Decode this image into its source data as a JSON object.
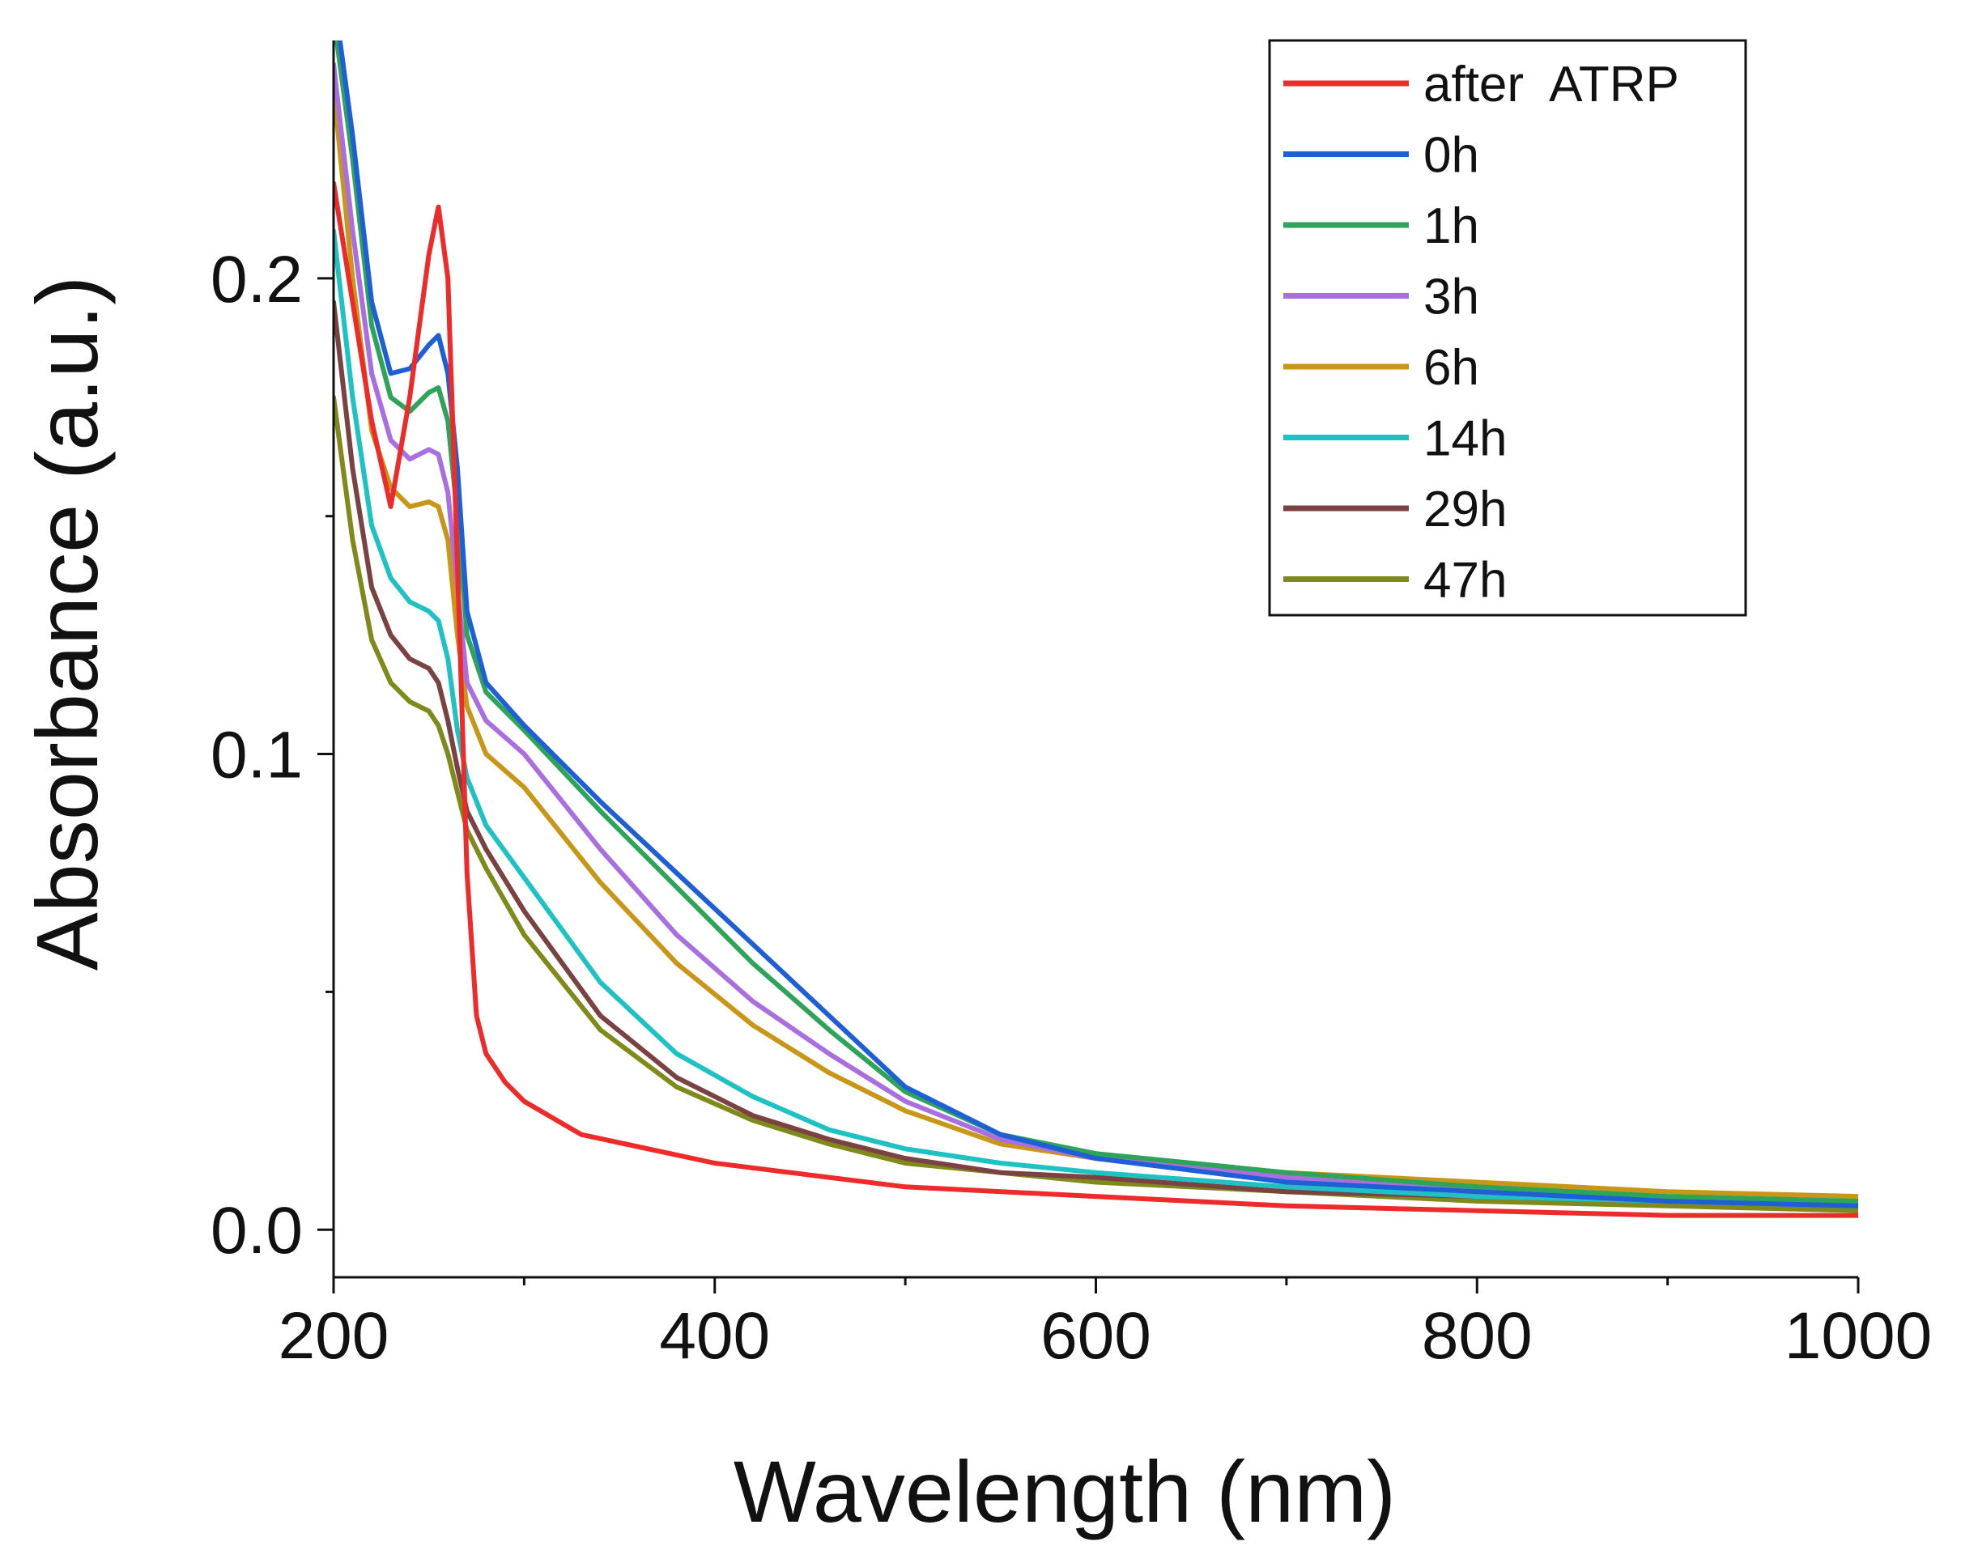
{
  "chart_data": {
    "type": "line",
    "title": "",
    "xlabel": "Wavelength (nm)",
    "ylabel": "Absorbance (a.u.)",
    "xlim": [
      200,
      1000
    ],
    "ylim": [
      -0.01,
      0.25
    ],
    "xticks": [
      200,
      400,
      600,
      800,
      1000
    ],
    "xtick_labels": [
      "200",
      "400",
      "600",
      "800",
      "1000"
    ],
    "yticks": [
      0.0,
      0.1,
      0.2
    ],
    "ytick_labels": [
      "0.0",
      "0.1",
      "0.2"
    ],
    "yminor_ticks": [
      0.05,
      0.15
    ],
    "grid": false,
    "legend_position": "top-right",
    "series": [
      {
        "name": "after  ATRP",
        "color": "#ee2a2a",
        "points": [
          [
            200,
            0.22
          ],
          [
            210,
            0.195
          ],
          [
            220,
            0.17
          ],
          [
            230,
            0.152
          ],
          [
            240,
            0.175
          ],
          [
            250,
            0.205
          ],
          [
            255,
            0.215
          ],
          [
            260,
            0.2
          ],
          [
            265,
            0.14
          ],
          [
            270,
            0.075
          ],
          [
            275,
            0.045
          ],
          [
            280,
            0.037
          ],
          [
            290,
            0.031
          ],
          [
            300,
            0.027
          ],
          [
            330,
            0.02
          ],
          [
            400,
            0.014
          ],
          [
            500,
            0.009
          ],
          [
            600,
            0.007
          ],
          [
            700,
            0.005
          ],
          [
            800,
            0.004
          ],
          [
            900,
            0.003
          ],
          [
            1000,
            0.003
          ]
        ]
      },
      {
        "name": "0h",
        "color": "#1f5fd6",
        "points": [
          [
            200,
            0.26
          ],
          [
            210,
            0.23
          ],
          [
            220,
            0.195
          ],
          [
            230,
            0.18
          ],
          [
            240,
            0.181
          ],
          [
            250,
            0.186
          ],
          [
            255,
            0.188
          ],
          [
            260,
            0.18
          ],
          [
            265,
            0.16
          ],
          [
            270,
            0.13
          ],
          [
            280,
            0.115
          ],
          [
            300,
            0.106
          ],
          [
            340,
            0.09
          ],
          [
            380,
            0.075
          ],
          [
            420,
            0.06
          ],
          [
            460,
            0.045
          ],
          [
            500,
            0.03
          ],
          [
            550,
            0.02
          ],
          [
            600,
            0.015
          ],
          [
            700,
            0.01
          ],
          [
            800,
            0.008
          ],
          [
            900,
            0.006
          ],
          [
            1000,
            0.005
          ]
        ]
      },
      {
        "name": "1h",
        "color": "#2ea35a",
        "points": [
          [
            200,
            0.255
          ],
          [
            210,
            0.225
          ],
          [
            220,
            0.19
          ],
          [
            230,
            0.175
          ],
          [
            240,
            0.172
          ],
          [
            250,
            0.176
          ],
          [
            255,
            0.177
          ],
          [
            260,
            0.17
          ],
          [
            265,
            0.15
          ],
          [
            270,
            0.125
          ],
          [
            280,
            0.113
          ],
          [
            300,
            0.105
          ],
          [
            340,
            0.088
          ],
          [
            380,
            0.072
          ],
          [
            420,
            0.056
          ],
          [
            460,
            0.042
          ],
          [
            500,
            0.029
          ],
          [
            550,
            0.02
          ],
          [
            600,
            0.016
          ],
          [
            700,
            0.012
          ],
          [
            800,
            0.009
          ],
          [
            900,
            0.007
          ],
          [
            1000,
            0.006
          ]
        ]
      },
      {
        "name": "3h",
        "color": "#a96ee0",
        "points": [
          [
            200,
            0.245
          ],
          [
            210,
            0.21
          ],
          [
            220,
            0.18
          ],
          [
            230,
            0.166
          ],
          [
            240,
            0.162
          ],
          [
            250,
            0.164
          ],
          [
            255,
            0.163
          ],
          [
            260,
            0.155
          ],
          [
            265,
            0.135
          ],
          [
            270,
            0.115
          ],
          [
            280,
            0.107
          ],
          [
            300,
            0.1
          ],
          [
            340,
            0.08
          ],
          [
            380,
            0.062
          ],
          [
            420,
            0.048
          ],
          [
            460,
            0.037
          ],
          [
            500,
            0.027
          ],
          [
            550,
            0.019
          ],
          [
            600,
            0.015
          ],
          [
            700,
            0.011
          ],
          [
            800,
            0.008
          ],
          [
            900,
            0.006
          ],
          [
            1000,
            0.005
          ]
        ]
      },
      {
        "name": "6h",
        "color": "#c99718",
        "points": [
          [
            200,
            0.24
          ],
          [
            210,
            0.2
          ],
          [
            220,
            0.168
          ],
          [
            230,
            0.156
          ],
          [
            240,
            0.152
          ],
          [
            250,
            0.153
          ],
          [
            255,
            0.152
          ],
          [
            260,
            0.145
          ],
          [
            265,
            0.125
          ],
          [
            270,
            0.11
          ],
          [
            280,
            0.1
          ],
          [
            300,
            0.093
          ],
          [
            340,
            0.073
          ],
          [
            380,
            0.056
          ],
          [
            420,
            0.043
          ],
          [
            460,
            0.033
          ],
          [
            500,
            0.025
          ],
          [
            550,
            0.018
          ],
          [
            600,
            0.015
          ],
          [
            700,
            0.012
          ],
          [
            800,
            0.01
          ],
          [
            900,
            0.008
          ],
          [
            1000,
            0.007
          ]
        ]
      },
      {
        "name": "14h",
        "color": "#1ec2c2",
        "points": [
          [
            200,
            0.21
          ],
          [
            210,
            0.175
          ],
          [
            220,
            0.148
          ],
          [
            230,
            0.137
          ],
          [
            240,
            0.132
          ],
          [
            250,
            0.13
          ],
          [
            255,
            0.128
          ],
          [
            260,
            0.12
          ],
          [
            265,
            0.105
          ],
          [
            270,
            0.095
          ],
          [
            280,
            0.085
          ],
          [
            300,
            0.074
          ],
          [
            340,
            0.052
          ],
          [
            380,
            0.037
          ],
          [
            420,
            0.028
          ],
          [
            460,
            0.021
          ],
          [
            500,
            0.017
          ],
          [
            550,
            0.014
          ],
          [
            600,
            0.012
          ],
          [
            700,
            0.009
          ],
          [
            800,
            0.007
          ],
          [
            900,
            0.006
          ],
          [
            1000,
            0.005
          ]
        ]
      },
      {
        "name": "29h",
        "color": "#7a4242",
        "points": [
          [
            200,
            0.195
          ],
          [
            210,
            0.16
          ],
          [
            220,
            0.135
          ],
          [
            230,
            0.125
          ],
          [
            240,
            0.12
          ],
          [
            250,
            0.118
          ],
          [
            255,
            0.115
          ],
          [
            260,
            0.107
          ],
          [
            265,
            0.097
          ],
          [
            270,
            0.088
          ],
          [
            280,
            0.08
          ],
          [
            300,
            0.067
          ],
          [
            340,
            0.045
          ],
          [
            380,
            0.032
          ],
          [
            420,
            0.024
          ],
          [
            460,
            0.019
          ],
          [
            500,
            0.015
          ],
          [
            550,
            0.012
          ],
          [
            600,
            0.011
          ],
          [
            700,
            0.008
          ],
          [
            800,
            0.007
          ],
          [
            900,
            0.006
          ],
          [
            1000,
            0.005
          ]
        ]
      },
      {
        "name": "47h",
        "color": "#7f8a1a",
        "points": [
          [
            200,
            0.175
          ],
          [
            210,
            0.145
          ],
          [
            220,
            0.124
          ],
          [
            230,
            0.115
          ],
          [
            240,
            0.111
          ],
          [
            250,
            0.109
          ],
          [
            255,
            0.106
          ],
          [
            260,
            0.1
          ],
          [
            265,
            0.092
          ],
          [
            270,
            0.084
          ],
          [
            280,
            0.076
          ],
          [
            300,
            0.062
          ],
          [
            340,
            0.042
          ],
          [
            380,
            0.03
          ],
          [
            420,
            0.023
          ],
          [
            460,
            0.018
          ],
          [
            500,
            0.014
          ],
          [
            550,
            0.012
          ],
          [
            600,
            0.01
          ],
          [
            700,
            0.008
          ],
          [
            800,
            0.006
          ],
          [
            900,
            0.005
          ],
          [
            1000,
            0.004
          ]
        ]
      }
    ]
  }
}
